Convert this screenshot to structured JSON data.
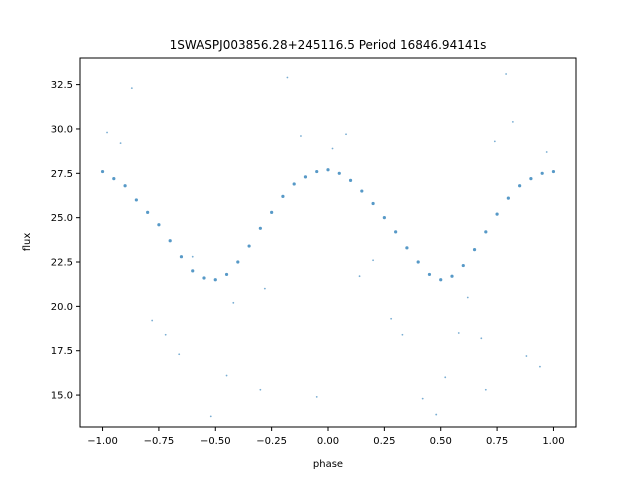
{
  "chart_data": {
    "type": "scatter",
    "title": "1SWASPJ003856.28+245116.5 Period 16846.94141s",
    "xlabel": "phase",
    "ylabel": "flux",
    "xlim": [
      -1.1,
      1.1
    ],
    "ylim": [
      13.2,
      34.0
    ],
    "xticks": [
      -1.0,
      -0.75,
      -0.5,
      -0.25,
      0.0,
      0.25,
      0.5,
      0.75,
      1.0
    ],
    "xtick_labels": [
      "−1.00",
      "−0.75",
      "−0.50",
      "−0.25",
      "0.00",
      "0.25",
      "0.50",
      "0.75",
      "1.00"
    ],
    "yticks": [
      15.0,
      17.5,
      20.0,
      22.5,
      25.0,
      27.5,
      30.0,
      32.5
    ],
    "ytick_labels": [
      "15.0",
      "17.5",
      "20.0",
      "22.5",
      "25.0",
      "27.5",
      "30.0",
      "32.5"
    ],
    "grid": false,
    "point_color": "#1f77b4",
    "series": [
      {
        "x": [
          -1.0,
          -0.95,
          -0.9,
          -0.85,
          -0.8,
          -0.75,
          -0.7,
          -0.65,
          -0.6,
          -0.55,
          -0.5,
          -0.45,
          -0.4,
          -0.35,
          -0.3,
          -0.25,
          -0.2,
          -0.15,
          -0.1,
          -0.05,
          0.0,
          0.05,
          0.1,
          0.15,
          0.2,
          0.25,
          0.3,
          0.35,
          0.4,
          0.45,
          0.5,
          0.55,
          0.6,
          0.65,
          0.7,
          0.75,
          0.8,
          0.85,
          0.9,
          0.95,
          1.0
        ],
        "y": [
          27.6,
          27.2,
          26.8,
          26.0,
          25.3,
          24.6,
          23.7,
          22.8,
          22.0,
          21.6,
          21.5,
          21.8,
          22.5,
          23.4,
          24.4,
          25.3,
          26.2,
          26.9,
          27.3,
          27.6,
          27.7,
          27.5,
          27.1,
          26.5,
          25.8,
          25.0,
          24.2,
          23.3,
          22.5,
          21.8,
          21.5,
          21.7,
          22.3,
          23.2,
          24.2,
          25.2,
          26.1,
          26.8,
          27.2,
          27.5,
          27.6
        ]
      },
      {
        "x": [
          -0.98,
          -0.92,
          -0.87,
          -0.78,
          -0.72,
          -0.66,
          -0.6,
          -0.52,
          -0.45,
          -0.42,
          -0.3,
          -0.28,
          -0.18,
          -0.12,
          -0.05,
          0.02,
          0.08,
          0.14,
          0.2,
          0.28,
          0.33,
          0.42,
          0.48,
          0.52,
          0.58,
          0.62,
          0.68,
          0.7,
          0.74,
          0.79,
          0.82,
          0.88,
          0.94,
          0.97
        ],
        "y": [
          29.8,
          29.2,
          32.3,
          19.2,
          18.4,
          17.3,
          22.8,
          13.8,
          16.1,
          20.2,
          15.3,
          21.0,
          32.9,
          29.6,
          14.9,
          28.9,
          29.7,
          21.7,
          22.6,
          19.3,
          18.4,
          14.8,
          13.9,
          16.0,
          18.5,
          20.5,
          18.2,
          15.3,
          29.3,
          33.1,
          30.4,
          17.2,
          16.6,
          28.7
        ]
      }
    ]
  }
}
